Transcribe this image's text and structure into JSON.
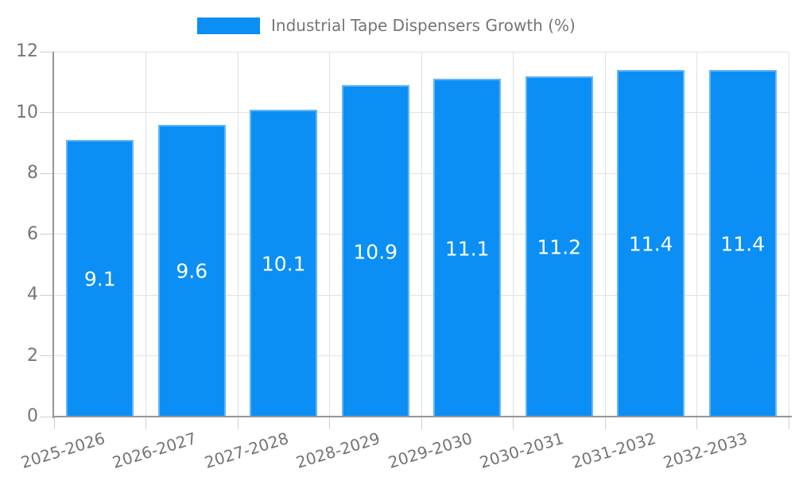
{
  "legend": {
    "label": "Industrial Tape Dispensers Growth (%)"
  },
  "chart_data": {
    "type": "bar",
    "title": "Industrial Tape Dispensers Growth (%)",
    "categories": [
      "2025-2026",
      "2026-2027",
      "2027-2028",
      "2028-2029",
      "2029-2030",
      "2030-2031",
      "2031-2032",
      "2032-2033"
    ],
    "values": [
      9.1,
      9.6,
      10.1,
      10.9,
      11.1,
      11.2,
      11.4,
      11.4
    ],
    "value_labels": [
      "9.1",
      "9.6",
      "10.1",
      "10.9",
      "11.1",
      "11.2",
      "11.4",
      "11.4"
    ],
    "xlabel": "",
    "ylabel": "",
    "ylim": [
      0,
      12
    ],
    "yticks": [
      0,
      2,
      4,
      6,
      8,
      10,
      12
    ],
    "grid": true,
    "legend_position": "top",
    "colors": {
      "bar_fill": "#0b8ff5",
      "bar_edge": "#65b5f7",
      "value_label": "#ffffff",
      "axis": "#969696",
      "grid": "#e2e2e2",
      "tick": "#cfcfcf",
      "text": "#757575"
    }
  }
}
